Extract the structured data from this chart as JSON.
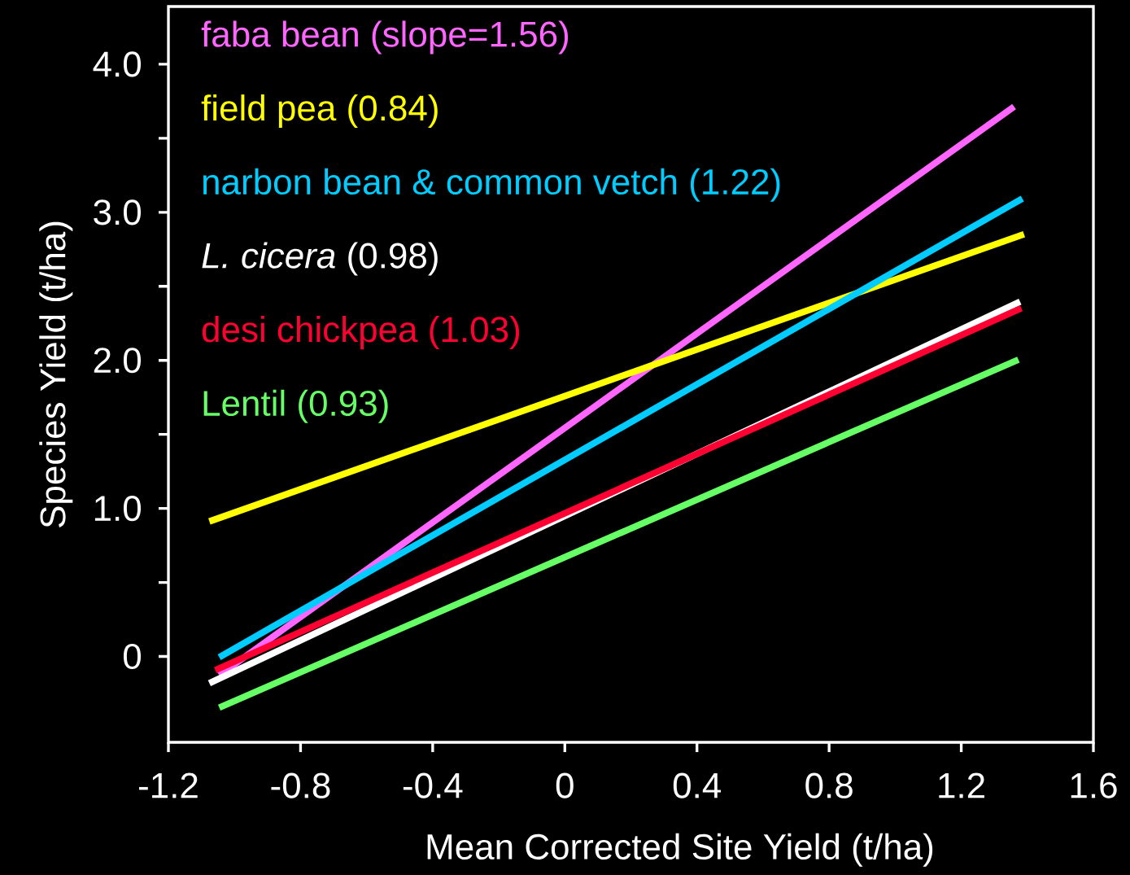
{
  "chart_data": {
    "type": "line",
    "xlabel": "Mean Corrected Site Yield (t/ha)",
    "ylabel": "Species Yield (t/ha)",
    "xlim": [
      -1.2,
      1.6
    ],
    "ylim": [
      -0.58,
      4.39
    ],
    "xticks": [
      -1.2,
      -0.8,
      -0.4,
      0,
      0.4,
      0.8,
      1.2,
      1.6
    ],
    "yticks": [
      0,
      {
        "value": 0.5,
        "label": null
      },
      {
        "value": 1,
        "label": "1.0"
      },
      {
        "value": 1.5,
        "label": null
      },
      {
        "value": 2,
        "label": "2.0"
      },
      {
        "value": 2.5,
        "label": null
      },
      {
        "value": 3,
        "label": "3.0"
      },
      {
        "value": 3.5,
        "label": null
      },
      {
        "value": 4,
        "label": "4.0"
      }
    ],
    "legend": "top left",
    "marker": "none",
    "line_style": "solid",
    "series": [
      {
        "name": "faba bean (slope=1.56)",
        "color": "#ff66ff",
        "x": [
          -1.046,
          1.36
        ],
        "values": [
          -0.126,
          3.714
        ]
      },
      {
        "name": "field pea (0.84)",
        "color": "#ffff00",
        "x": [
          -1.076,
          1.39
        ],
        "values": [
          0.912,
          2.852
        ]
      },
      {
        "name": "narbon bean & common vetch (1.22)",
        "color": "#00ccff",
        "x": [
          -1.046,
          1.385
        ],
        "values": [
          -0.005,
          3.093
        ]
      },
      {
        "name": "*L. cicera* (0.98)",
        "color": "#ffffff",
        "x": [
          -1.076,
          1.378
        ],
        "values": [
          -0.181,
          2.396
        ]
      },
      {
        "name": "desi chickpea (1.03)",
        "color": "#ff0033",
        "x": [
          -1.058,
          1.382
        ],
        "values": [
          -0.093,
          2.352
        ]
      },
      {
        "name": "Lentil (0.93)",
        "color": "#66ff66",
        "x": [
          -1.046,
          1.373
        ],
        "values": [
          -0.346,
          2.005
        ]
      }
    ]
  }
}
